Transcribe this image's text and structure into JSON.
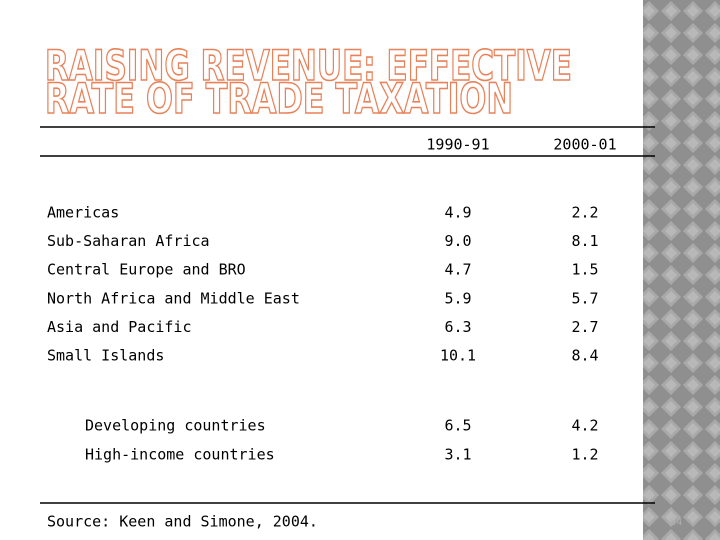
{
  "title": {
    "lines": [
      "RAISING REVENUE: EFFECTIVE",
      "RATE OF TRADE TAXATION"
    ]
  },
  "table": {
    "header": [
      "1990-91",
      "2000-01"
    ],
    "rows": [
      [
        "Americas",
        "4.9",
        "2.2"
      ],
      [
        "Sub-Saharan Africa",
        "9.0",
        "8.1"
      ],
      [
        "Central Europe and BRO",
        "4.7",
        "1.5"
      ],
      [
        "North Africa and Middle East",
        "5.9",
        "5.7"
      ],
      [
        "Asia and Pacific",
        "6.3",
        "2.7"
      ],
      [
        "Small Islands",
        "10.1",
        "8.4"
      ]
    ],
    "totals": [
      [
        "Developing countries",
        "6.5",
        "4.2"
      ],
      [
        "High-income countries",
        "3.1",
        "1.2"
      ]
    ]
  },
  "source": "Source: Keen and Simone, 2004.",
  "page_number": "64"
}
